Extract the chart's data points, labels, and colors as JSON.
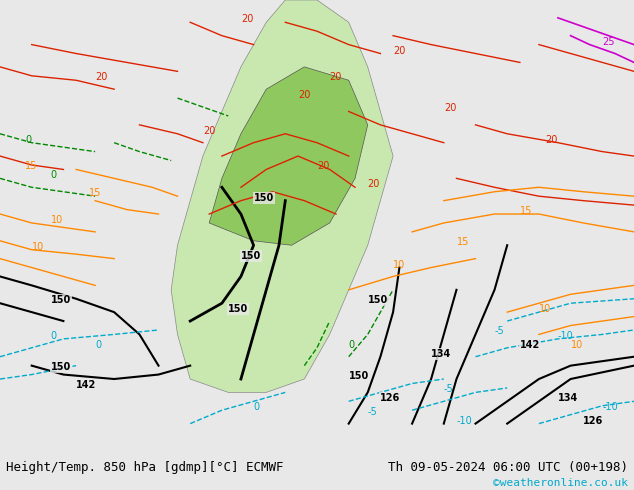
{
  "title_left": "Height/Temp. 850 hPa [gdmp][°C] ECMWF",
  "title_right": "Th 09-05-2024 06:00 UTC (00+198)",
  "watermark": "©weatheronline.co.uk",
  "bg_color": "#e8e8e8",
  "map_bg": "#d8d8d8",
  "fig_width": 6.34,
  "fig_height": 4.9,
  "dpi": 100,
  "font_size_bottom": 9,
  "font_size_watermark": 8,
  "watermark_color": "#00aacc",
  "text_color": "#000000"
}
